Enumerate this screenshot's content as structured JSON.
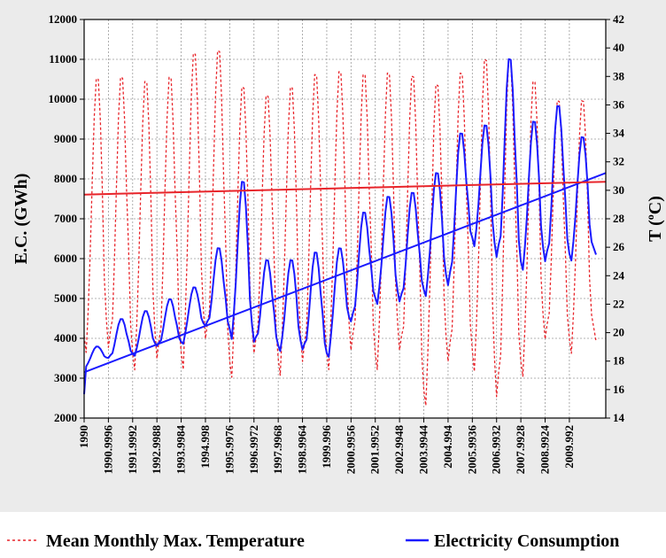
{
  "chart_data": {
    "type": "line",
    "title": "",
    "ylabel_left": "E.C. (GWh)",
    "ylabel_right_prefix": "T (",
    "ylabel_right_sup": "o",
    "ylabel_right_suffix": "C)",
    "xlabel": "",
    "xlim": [
      1990,
      2011.5
    ],
    "ylim_left": [
      2000,
      12000
    ],
    "ylim_right": [
      14,
      42
    ],
    "grid": true,
    "x_tick_labels": [
      "1990",
      "1990.9996",
      "1991.9992",
      "1992.9988",
      "1993.9984",
      "1994.998",
      "1995.9976",
      "1996.9972",
      "1997.9968",
      "1998.9964",
      "1999.996",
      "2000.9956",
      "2001.9952",
      "2002.9948",
      "2003.9944",
      "2004.994",
      "2005.9936",
      "2006.9932",
      "2007.9928",
      "2008.9924",
      "2009.992"
    ],
    "x_tick_values": [
      1990,
      1991,
      1992,
      1993,
      1994,
      1995,
      1996,
      1997,
      1998,
      1999,
      2000,
      2001,
      2002,
      2003,
      2004,
      2005,
      2006,
      2007,
      2008,
      2009,
      2010
    ],
    "y_left_ticks": [
      2000,
      3000,
      4000,
      5000,
      6000,
      7000,
      8000,
      9000,
      10000,
      11000,
      12000
    ],
    "y_right_ticks": [
      14,
      16,
      18,
      20,
      22,
      24,
      26,
      28,
      30,
      32,
      34,
      36,
      38,
      40,
      42
    ],
    "series": [
      {
        "name": "Mean Monthly Max. Temperature",
        "axis": "right",
        "style": "dashed",
        "color": "#e8252b",
        "summer_peaks": [
          38.2,
          38.3,
          38.0,
          38.3,
          40.0,
          40.2,
          37.6,
          37.0,
          37.6,
          38.5,
          38.7,
          38.5,
          38.6,
          38.4,
          37.8,
          38.6,
          39.6,
          39.6,
          38.0,
          36.6,
          36.6
        ],
        "winter_troughs": [
          19.6,
          18.8,
          18.4,
          18.0,
          18.4,
          19.4,
          17.8,
          18.4,
          18.0,
          17.8,
          18.4,
          18.6,
          18.4,
          18.6,
          15.8,
          17.8,
          18.6,
          15.3,
          17.8,
          19.4,
          19.4
        ]
      },
      {
        "name": "Electricity Consumption",
        "axis": "left",
        "style": "solid",
        "color": "#1a1aff",
        "start_value": 2600,
        "summer_peaks": [
          3800,
          4500,
          4700,
          5000,
          5300,
          6300,
          8000,
          6000,
          6000,
          6200,
          6300,
          7200,
          7600,
          7700,
          8200,
          9200,
          9400,
          11100,
          9500,
          9900,
          9100
        ],
        "winter_troughs": [
          3300,
          3500,
          3600,
          3800,
          3900,
          4300,
          4200,
          3900,
          3800,
          3700,
          3600,
          4400,
          5000,
          4900,
          5200,
          5300,
          6500,
          6000,
          5900,
          5900,
          6100
        ]
      },
      {
        "name": "",
        "axis": "left",
        "style": "solid",
        "color": "#1a1aff",
        "kind": "trend",
        "x": [
          1990,
          2011.5
        ],
        "values": [
          3150,
          8150
        ]
      },
      {
        "name": "",
        "axis": "right",
        "style": "solid",
        "color": "#e8252b",
        "kind": "trend",
        "x": [
          1990,
          2011.5
        ],
        "values": [
          29.7,
          30.6
        ]
      }
    ],
    "legend": {
      "placement": "bottom",
      "items": [
        {
          "label": "Mean Monthly Max.  Temperature",
          "color": "#e8252b",
          "style": "dashed"
        },
        {
          "label": "Electricity Consumption",
          "color": "#1a1aff",
          "style": "solid"
        }
      ]
    }
  }
}
